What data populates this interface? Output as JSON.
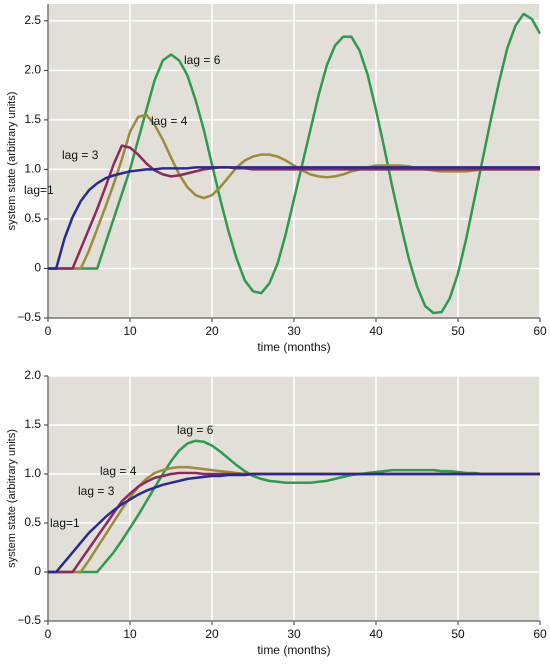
{
  "chart_data": [
    {
      "type": "line",
      "xlabel": "time (months)",
      "ylabel": "system state (arbitrary units)",
      "grid": true,
      "background": "#e2dfd8",
      "xlim": [
        0,
        60
      ],
      "xticks": [
        0,
        10,
        20,
        30,
        40,
        50,
        60
      ],
      "ylim": [
        -0.5,
        2.67
      ],
      "yticks": [
        {
          "value": -0.5,
          "label": "−0.5"
        },
        0,
        0.5,
        {
          "value": 1,
          "label": "1.0"
        },
        1.5,
        {
          "value": 2,
          "label": "2.0"
        },
        2.5
      ],
      "x": [
        0,
        1,
        2,
        3,
        4,
        5,
        6,
        7,
        8,
        9,
        10,
        11,
        12,
        13,
        14,
        15,
        16,
        17,
        18,
        19,
        20,
        21,
        22,
        23,
        24,
        25,
        26,
        27,
        28,
        29,
        30,
        31,
        32,
        33,
        34,
        35,
        36,
        37,
        38,
        39,
        40,
        41,
        42,
        43,
        44,
        45,
        46,
        47,
        48,
        49,
        50,
        51,
        52,
        53,
        54,
        55,
        56,
        57,
        58,
        59,
        60
      ],
      "series": [
        {
          "name": "lag = 6",
          "color": "#2e9a4e",
          "values": [
            0,
            0,
            0,
            0,
            0,
            0,
            0,
            0.25,
            0.5,
            0.75,
            1.0,
            1.3,
            1.6,
            1.9,
            2.1,
            2.16,
            2.1,
            1.95,
            1.7,
            1.4,
            1.05,
            0.7,
            0.38,
            0.1,
            -0.12,
            -0.23,
            -0.25,
            -0.15,
            0.05,
            0.35,
            0.7,
            1.05,
            1.4,
            1.75,
            2.05,
            2.25,
            2.34,
            2.34,
            2.2,
            1.95,
            1.6,
            1.22,
            0.82,
            0.45,
            0.1,
            -0.18,
            -0.38,
            -0.45,
            -0.44,
            -0.3,
            -0.05,
            0.3,
            0.7,
            1.1,
            1.5,
            1.88,
            2.22,
            2.45,
            2.57,
            2.52,
            2.37
          ]
        },
        {
          "name": "lag = 4",
          "color": "#9b8b3c",
          "values": [
            0,
            0,
            0,
            0,
            0,
            0.18,
            0.4,
            0.62,
            0.85,
            1.1,
            1.38,
            1.53,
            1.55,
            1.45,
            1.3,
            1.12,
            0.95,
            0.82,
            0.74,
            0.71,
            0.74,
            0.82,
            0.92,
            1.02,
            1.09,
            1.13,
            1.15,
            1.15,
            1.13,
            1.09,
            1.04,
            0.99,
            0.95,
            0.93,
            0.92,
            0.93,
            0.95,
            0.98,
            1.0,
            1.02,
            1.04,
            1.04,
            1.04,
            1.04,
            1.03,
            1.01,
            1.0,
            0.99,
            0.98,
            0.98,
            0.98,
            0.98,
            0.99,
            1,
            1,
            1,
            1,
            1,
            1,
            1,
            1
          ]
        },
        {
          "name": "lag = 3",
          "color": "#8c2a5c",
          "values": [
            0,
            0,
            0,
            0,
            0.2,
            0.4,
            0.6,
            0.82,
            1.05,
            1.24,
            1.22,
            1.15,
            1.06,
            0.99,
            0.95,
            0.93,
            0.94,
            0.96,
            0.98,
            1.0,
            1.01,
            1.02,
            1.02,
            1.01,
            1.01,
            1,
            1,
            1,
            1,
            1,
            1,
            1,
            1,
            1,
            1,
            1,
            1,
            1,
            1,
            1,
            1,
            1,
            1,
            1,
            1,
            1,
            1,
            1,
            1,
            1,
            1,
            1,
            1,
            1,
            1,
            1,
            1,
            1,
            1,
            1,
            1
          ]
        },
        {
          "name": "lag=1",
          "color": "#2b2a8c",
          "values": [
            0,
            0,
            0.3,
            0.52,
            0.68,
            0.79,
            0.86,
            0.91,
            0.94,
            0.96,
            0.98,
            0.99,
            1.0,
            1.0,
            1.01,
            1.01,
            1.01,
            1.01,
            1.02,
            1.02,
            1.02,
            1.02,
            1.02,
            1.02,
            1.02,
            1.02,
            1.02,
            1.02,
            1.02,
            1.02,
            1.02,
            1.02,
            1.02,
            1.02,
            1.02,
            1.02,
            1.02,
            1.02,
            1.02,
            1.02,
            1.02,
            1.02,
            1.02,
            1.02,
            1.02,
            1.02,
            1.02,
            1.02,
            1.02,
            1.02,
            1.02,
            1.02,
            1.02,
            1.02,
            1.02,
            1.02,
            1.02,
            1.02,
            1.02,
            1.02,
            1.02
          ]
        }
      ]
    },
    {
      "type": "line",
      "xlabel": "time (months)",
      "ylabel": "system state (arbitrary units)",
      "grid": true,
      "background": "#e2dfd8",
      "xlim": [
        0,
        60
      ],
      "xticks": [
        0,
        10,
        20,
        30,
        40,
        50,
        60
      ],
      "ylim": [
        -0.5,
        2.0
      ],
      "yticks": [
        {
          "value": -0.5,
          "label": "−0.5"
        },
        0,
        0.5,
        {
          "value": 1,
          "label": "1.0"
        },
        1.5,
        {
          "value": 2,
          "label": "2.0"
        }
      ],
      "x": [
        0,
        1,
        2,
        3,
        4,
        5,
        6,
        7,
        8,
        9,
        10,
        11,
        12,
        13,
        14,
        15,
        16,
        17,
        18,
        19,
        20,
        21,
        22,
        23,
        24,
        25,
        26,
        27,
        28,
        29,
        30,
        31,
        32,
        33,
        34,
        35,
        36,
        37,
        38,
        39,
        40,
        41,
        42,
        43,
        44,
        45,
        46,
        47,
        48,
        49,
        50,
        51,
        52,
        53,
        54,
        55,
        56,
        57,
        58,
        59,
        60
      ],
      "series": [
        {
          "name": "lag = 6",
          "color": "#2e9a4e",
          "values": [
            0,
            0,
            0,
            0,
            0,
            0,
            0,
            0.1,
            0.2,
            0.32,
            0.45,
            0.58,
            0.72,
            0.86,
            1.0,
            1.13,
            1.24,
            1.31,
            1.34,
            1.33,
            1.29,
            1.23,
            1.16,
            1.09,
            1.03,
            0.98,
            0.95,
            0.93,
            0.92,
            0.91,
            0.91,
            0.91,
            0.91,
            0.92,
            0.93,
            0.95,
            0.97,
            0.99,
            1.0,
            1.01,
            1.02,
            1.03,
            1.04,
            1.04,
            1.04,
            1.04,
            1.04,
            1.04,
            1.03,
            1.03,
            1.02,
            1.01,
            1.01,
            1,
            1,
            1,
            1,
            1,
            1,
            1,
            1
          ]
        },
        {
          "name": "lag = 4",
          "color": "#9b8b3c",
          "values": [
            0,
            0,
            0,
            0,
            0,
            0.12,
            0.25,
            0.38,
            0.51,
            0.64,
            0.76,
            0.87,
            0.95,
            1.01,
            1.04,
            1.06,
            1.07,
            1.07,
            1.06,
            1.05,
            1.04,
            1.03,
            1.02,
            1.01,
            1,
            1,
            1,
            1,
            1,
            1,
            1,
            1,
            1,
            1,
            1,
            1,
            1,
            1,
            1,
            1,
            1,
            1,
            1,
            1,
            1,
            1,
            1,
            1,
            1,
            1,
            1,
            1,
            1,
            1,
            1,
            1,
            1,
            1,
            1,
            1,
            1
          ]
        },
        {
          "name": "lag = 3",
          "color": "#8c2a5c",
          "values": [
            0,
            0,
            0,
            0,
            0.12,
            0.24,
            0.36,
            0.48,
            0.6,
            0.72,
            0.8,
            0.87,
            0.92,
            0.96,
            0.98,
            1.0,
            1.01,
            1.01,
            1.01,
            1.0,
            1,
            1,
            1,
            1,
            1,
            1,
            1,
            1,
            1,
            1,
            1,
            1,
            1,
            1,
            1,
            1,
            1,
            1,
            1,
            1,
            1,
            1,
            1,
            1,
            1,
            1,
            1,
            1,
            1,
            1,
            1,
            1,
            1,
            1,
            1,
            1,
            1,
            1,
            1,
            1,
            1
          ]
        },
        {
          "name": "lag=1",
          "color": "#2b2a8c",
          "values": [
            0,
            0,
            0.1,
            0.2,
            0.3,
            0.4,
            0.48,
            0.56,
            0.63,
            0.69,
            0.74,
            0.79,
            0.83,
            0.86,
            0.89,
            0.91,
            0.93,
            0.95,
            0.96,
            0.97,
            0.98,
            0.98,
            0.99,
            0.99,
            0.99,
            1,
            1,
            1,
            1,
            1,
            1,
            1,
            1,
            1,
            1,
            1,
            1,
            1,
            1,
            1,
            1,
            1,
            1,
            1,
            1,
            1,
            1,
            1,
            1,
            1,
            1,
            1,
            1,
            1,
            1,
            1,
            1,
            1,
            1,
            1,
            1
          ]
        }
      ]
    }
  ]
}
